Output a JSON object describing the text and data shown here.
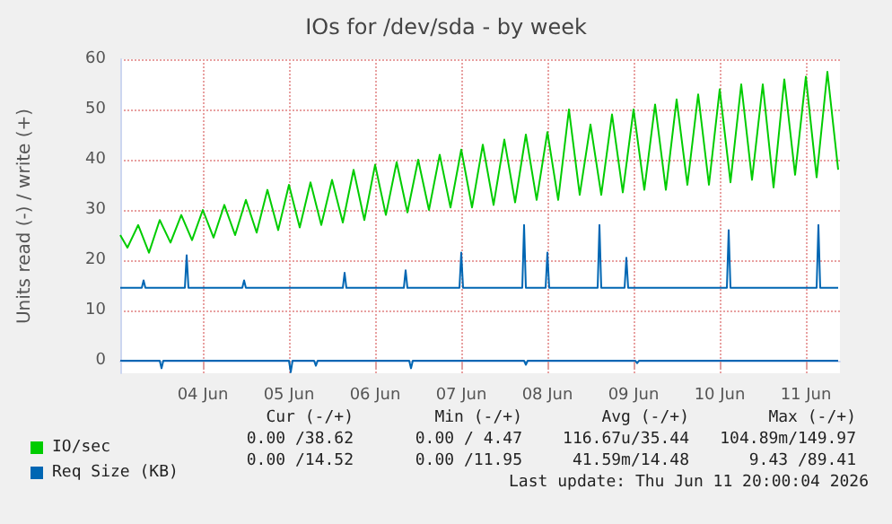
{
  "chart_data": {
    "type": "line",
    "title": "IOs for /dev/sda - by week",
    "ylabel": "Units read (-) / write (+)",
    "xlim": [
      "2026-06-03T13:00",
      "2026-06-11T21:30"
    ],
    "xticks": [
      {
        "value": "2026-06-04T12:00",
        "label": "04 Jun"
      },
      {
        "value": "2026-06-05T12:00",
        "label": "05 Jun"
      },
      {
        "value": "2026-06-06T12:00",
        "label": "06 Jun"
      },
      {
        "value": "2026-06-07T12:00",
        "label": "07 Jun"
      },
      {
        "value": "2026-06-08T12:00",
        "label": "08 Jun"
      },
      {
        "value": "2026-06-09T12:00",
        "label": "09 Jun"
      },
      {
        "value": "2026-06-10T12:00",
        "label": "10 Jun"
      },
      {
        "value": "2026-06-11T12:00",
        "label": "11 Jun"
      }
    ],
    "ylim": [
      -2.5,
      60
    ],
    "yticks": [
      0,
      10,
      20,
      30,
      40,
      50,
      60
    ],
    "grid": true,
    "legend": "bottom left",
    "marker": "none",
    "line_style": "solid",
    "series": [
      {
        "name": "IO/sec",
        "color": "#00cc00",
        "x": [
          "2026-06-03T13:00",
          "2026-06-03T15:00",
          "2026-06-03T18:00",
          "2026-06-03T21:00",
          "2026-06-04T00:00",
          "2026-06-04T03:00",
          "2026-06-04T06:00",
          "2026-06-04T09:00",
          "2026-06-04T12:00",
          "2026-06-04T15:00",
          "2026-06-04T18:00",
          "2026-06-04T21:00",
          "2026-06-05T00:00",
          "2026-06-05T03:00",
          "2026-06-05T06:00",
          "2026-06-05T09:00",
          "2026-06-05T12:00",
          "2026-06-05T15:00",
          "2026-06-05T18:00",
          "2026-06-05T21:00",
          "2026-06-06T00:00",
          "2026-06-06T03:00",
          "2026-06-06T06:00",
          "2026-06-06T09:00",
          "2026-06-06T12:00",
          "2026-06-06T15:00",
          "2026-06-06T18:00",
          "2026-06-06T21:00",
          "2026-06-07T00:00",
          "2026-06-07T03:00",
          "2026-06-07T06:00",
          "2026-06-07T09:00",
          "2026-06-07T12:00",
          "2026-06-07T15:00",
          "2026-06-07T18:00",
          "2026-06-07T21:00",
          "2026-06-08T00:00",
          "2026-06-08T03:00",
          "2026-06-08T06:00",
          "2026-06-08T09:00",
          "2026-06-08T12:00",
          "2026-06-08T15:00",
          "2026-06-08T18:00",
          "2026-06-08T21:00",
          "2026-06-09T00:00",
          "2026-06-09T03:00",
          "2026-06-09T06:00",
          "2026-06-09T09:00",
          "2026-06-09T12:00",
          "2026-06-09T15:00",
          "2026-06-09T18:00",
          "2026-06-09T21:00",
          "2026-06-10T00:00",
          "2026-06-10T03:00",
          "2026-06-10T06:00",
          "2026-06-10T09:00",
          "2026-06-10T12:00",
          "2026-06-10T15:00",
          "2026-06-10T18:00",
          "2026-06-10T21:00",
          "2026-06-11T00:00",
          "2026-06-11T03:00",
          "2026-06-11T06:00",
          "2026-06-11T09:00",
          "2026-06-11T12:00",
          "2026-06-11T15:00",
          "2026-06-11T18:00",
          "2026-06-11T21:00"
        ],
        "values": [
          25,
          22.5,
          27,
          21.5,
          28,
          23.5,
          29,
          24,
          30,
          24.5,
          31,
          25,
          32,
          25.5,
          34,
          26,
          35,
          26.5,
          35.5,
          27,
          36,
          27.5,
          38,
          28,
          39,
          29,
          39.5,
          29.5,
          40,
          30,
          41,
          30.5,
          42,
          30.5,
          43,
          31,
          44,
          31.5,
          45,
          32,
          45.5,
          32,
          50,
          33,
          47,
          33,
          49,
          33.5,
          50,
          34,
          51,
          34,
          52,
          35,
          53,
          35,
          54,
          35.5,
          55,
          36,
          55,
          34.5,
          56,
          37,
          56.5,
          36.5,
          57.5,
          38
        ]
      },
      {
        "name": "Req Size (KB)",
        "color": "#0066b3",
        "x": [
          "2026-06-03T13:00",
          "2026-06-03T19:00",
          "2026-06-03T19:30",
          "2026-06-03T20:00",
          "2026-06-04T07:00",
          "2026-06-04T07:30",
          "2026-06-04T08:00",
          "2026-06-04T23:00",
          "2026-06-04T23:30",
          "2026-06-05T00:00",
          "2026-06-06T03:00",
          "2026-06-06T03:30",
          "2026-06-06T04:00",
          "2026-06-06T20:00",
          "2026-06-06T20:30",
          "2026-06-06T21:00",
          "2026-06-07T11:30",
          "2026-06-07T12:00",
          "2026-06-07T12:30",
          "2026-06-08T05:00",
          "2026-06-08T05:30",
          "2026-06-08T06:00",
          "2026-06-08T11:30",
          "2026-06-08T12:00",
          "2026-06-08T12:30",
          "2026-06-09T02:00",
          "2026-06-09T02:30",
          "2026-06-09T03:00",
          "2026-06-09T09:30",
          "2026-06-09T10:00",
          "2026-06-09T10:30",
          "2026-06-10T14:00",
          "2026-06-10T14:30",
          "2026-06-10T15:00",
          "2026-06-11T15:00",
          "2026-06-11T15:30",
          "2026-06-11T16:00",
          "2026-06-11T21:00"
        ],
        "values": [
          14.5,
          14.5,
          16,
          14.5,
          14.5,
          21,
          14.5,
          14.5,
          16,
          14.5,
          14.5,
          17.5,
          14.5,
          14.5,
          18,
          14.5,
          14.5,
          21.5,
          14.5,
          14.5,
          27,
          14.5,
          14.5,
          21.5,
          14.5,
          14.5,
          27,
          14.5,
          14.5,
          20.5,
          14.5,
          14.5,
          26,
          14.5,
          14.5,
          27,
          14.5,
          14.5
        ]
      },
      {
        "color": "#0066b3",
        "x": [
          "2026-06-03T13:00",
          "2026-06-04T00:00",
          "2026-06-04T00:30",
          "2026-06-04T01:00",
          "2026-06-05T12:00",
          "2026-06-05T12:30",
          "2026-06-05T13:00",
          "2026-06-05T19:00",
          "2026-06-05T19:30",
          "2026-06-05T20:00",
          "2026-06-06T21:30",
          "2026-06-06T22:00",
          "2026-06-06T22:30",
          "2026-06-08T05:30",
          "2026-06-08T06:00",
          "2026-06-08T06:30",
          "2026-06-09T12:30",
          "2026-06-09T13:00",
          "2026-06-09T13:30",
          "2026-06-11T21:00"
        ],
        "values": [
          0,
          0,
          -1.5,
          0,
          0,
          -2.3,
          0,
          0,
          -1,
          0,
          0,
          -1.5,
          0,
          0,
          -0.8,
          0,
          0,
          -0.5,
          0,
          0
        ]
      }
    ],
    "annotations": [
      "Cur (-/+)",
      "Min (-/+)",
      "Avg (-/+)",
      "Max (-/+)",
      "0.00 /38.62",
      "0.00 / 4.47",
      "116.67u/35.44",
      "104.89m/149.97",
      "0.00 /14.52",
      "0.00 /11.95",
      "41.59m/14.48",
      "9.43 /89.41",
      "Last update: Thu Jun 11 20:00:04 2026"
    ]
  }
}
